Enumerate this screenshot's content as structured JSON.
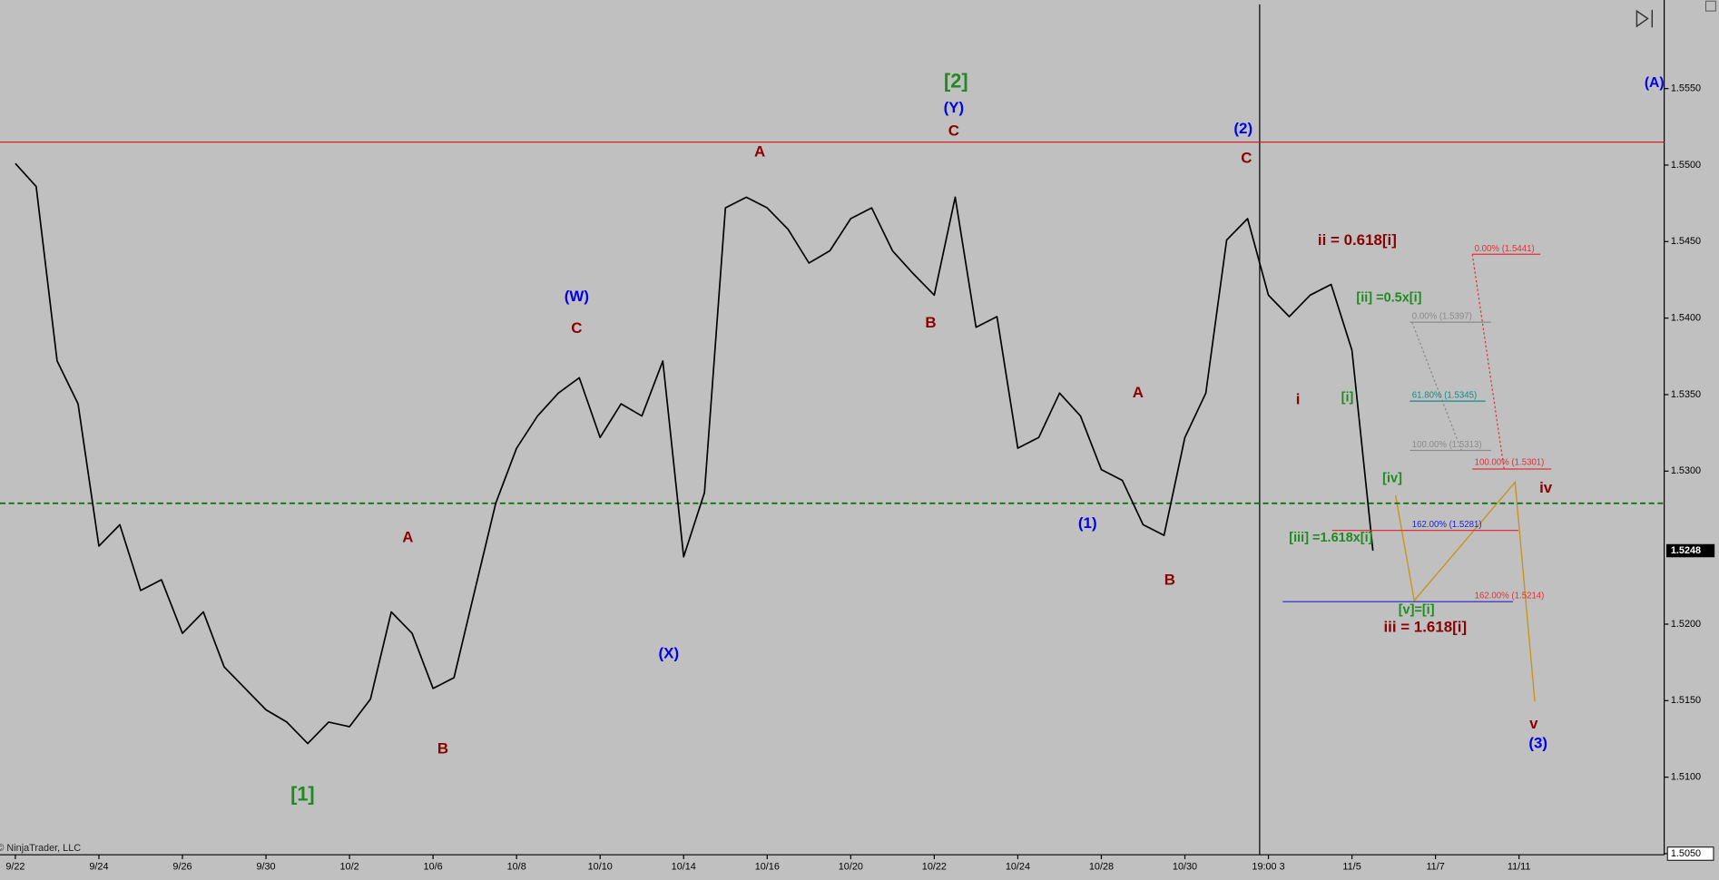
{
  "chart_data": {
    "type": "line",
    "categories": [
      "9/22",
      null,
      null,
      null,
      "9/24",
      null,
      null,
      null,
      "9/26",
      null,
      null,
      null,
      "9/30",
      null,
      null,
      null,
      "10/2",
      null,
      null,
      null,
      "10/6",
      null,
      null,
      null,
      "10/8",
      null,
      null,
      null,
      "10/10",
      null,
      null,
      null,
      "10/14",
      null,
      null,
      null,
      "10/16",
      null,
      null,
      null,
      "10/20",
      null,
      null,
      null,
      "10/22",
      null,
      null,
      null,
      "10/24",
      null,
      null,
      null,
      "10/28",
      null,
      null,
      null,
      "10/30",
      null,
      null,
      null,
      "19:00 3",
      null,
      null,
      null,
      "11/5",
      null,
      null,
      null,
      "11/7",
      null,
      null,
      null,
      "11/11"
    ],
    "series": [
      {
        "name": "Price",
        "color": "#000000",
        "values": [
          1.5501,
          1.5486,
          1.5372,
          1.5344,
          1.5251,
          1.5265,
          1.5222,
          1.5229,
          1.5194,
          1.5208,
          1.5172,
          1.5158,
          1.5144,
          1.5136,
          1.5122,
          1.5136,
          1.5133,
          1.5151,
          1.5208,
          1.5194,
          1.5158,
          1.5165,
          1.5222,
          1.5279,
          1.5315,
          1.5336,
          1.5351,
          1.5361,
          1.5322,
          1.5344,
          1.5336,
          1.5372,
          1.5244,
          1.5286,
          1.5472,
          1.5479,
          1.5472,
          1.5458,
          1.5436,
          1.5444,
          1.5465,
          1.5472,
          1.5444,
          1.5429,
          1.5415,
          1.5479,
          1.5394,
          1.5401,
          1.5315,
          1.5322,
          1.5351,
          1.5336,
          1.5301,
          1.5294,
          1.5265,
          1.5258,
          1.5322,
          1.5351,
          1.5451,
          1.5465,
          1.5415,
          1.5401,
          1.5415,
          1.5422,
          1.5379,
          1.5248,
          null,
          null,
          null,
          null,
          null,
          null,
          null
        ]
      }
    ],
    "ylim": [
      1.505,
      1.5605
    ],
    "yticks": [
      {
        "value": 1.505,
        "label": "1.5050"
      },
      {
        "value": 1.51,
        "label": "1.5100"
      },
      {
        "value": 1.515,
        "label": "1.5150"
      },
      {
        "value": 1.52,
        "label": "1.5200"
      },
      {
        "value": 1.53,
        "label": "1.5300"
      },
      {
        "value": 1.535,
        "label": "1.5350"
      },
      {
        "value": 1.54,
        "label": "1.5400"
      },
      {
        "value": 1.545,
        "label": "1.5450"
      },
      {
        "value": 1.55,
        "label": "1.5500"
      },
      {
        "value": 1.555,
        "label": "1.5550"
      }
    ],
    "last_price": 1.5248,
    "hlines": [
      {
        "value": 1.5515,
        "color": "#d02020",
        "dashed": false
      },
      {
        "value": 1.5279,
        "color": "#007000",
        "dashed": true
      }
    ],
    "annotations": [
      {
        "text": "[2]",
        "color": "#1f8a1f"
      },
      {
        "text": "(Y)",
        "color": "#0000ee"
      },
      {
        "text": "C",
        "color": "#8b0000"
      },
      {
        "text": "A",
        "color": "#8b0000"
      },
      {
        "text": "(2)",
        "color": "#0000ee"
      },
      {
        "text": "C",
        "color": "#8b0000"
      },
      {
        "text": "(A)",
        "color": "#0000ee"
      },
      {
        "text": "ii = 0.618[i]",
        "color": "#8b0000"
      },
      {
        "text": "[ii] =0.5x[i]",
        "color": "#1f8a1f"
      },
      {
        "text": "(W)",
        "color": "#0000ee"
      },
      {
        "text": "C",
        "color": "#8b0000"
      },
      {
        "text": "B",
        "color": "#8b0000"
      },
      {
        "text": "i",
        "color": "#8b0000"
      },
      {
        "text": "[i]",
        "color": "#1f8a1f"
      },
      {
        "text": "A",
        "color": "#8b0000"
      },
      {
        "text": "(1)",
        "color": "#0000ee"
      },
      {
        "text": "[iv]",
        "color": "#1f8a1f"
      },
      {
        "text": "iv",
        "color": "#8b0000"
      },
      {
        "text": "[iii] =1.618x[i]",
        "color": "#1f8a1f"
      },
      {
        "text": "A",
        "color": "#8b0000"
      },
      {
        "text": "B",
        "color": "#8b0000"
      },
      {
        "text": "[v]=[i]",
        "color": "#1f8a1f"
      },
      {
        "text": "iii = 1.618[i]",
        "color": "#8b0000"
      },
      {
        "text": "(X)",
        "color": "#0000ee"
      },
      {
        "text": "B",
        "color": "#8b0000"
      },
      {
        "text": "v",
        "color": "#8b0000"
      },
      {
        "text": "(3)",
        "color": "#0000ee"
      },
      {
        "text": "[1]",
        "color": "#1f8a1f"
      }
    ],
    "fib_levels": [
      {
        "label": "0.00% (1.5441)",
        "color": "#e0303a"
      },
      {
        "label": "0.00% (1.5397)",
        "color": "#8a8a8a"
      },
      {
        "label": "61.80% (1.5345)",
        "color": "#138a8a"
      },
      {
        "label": "100.00% (1.5313)",
        "color": "#8a8a8a"
      },
      {
        "label": "100.00% (1.5301)",
        "color": "#e0303a"
      },
      {
        "label": "162.00% (1.5281)",
        "color": "#2020d0"
      },
      {
        "label": "162.00% (1.5214)",
        "color": "#e0303a"
      }
    ],
    "watermark": "© NinjaTrader, LLC"
  }
}
